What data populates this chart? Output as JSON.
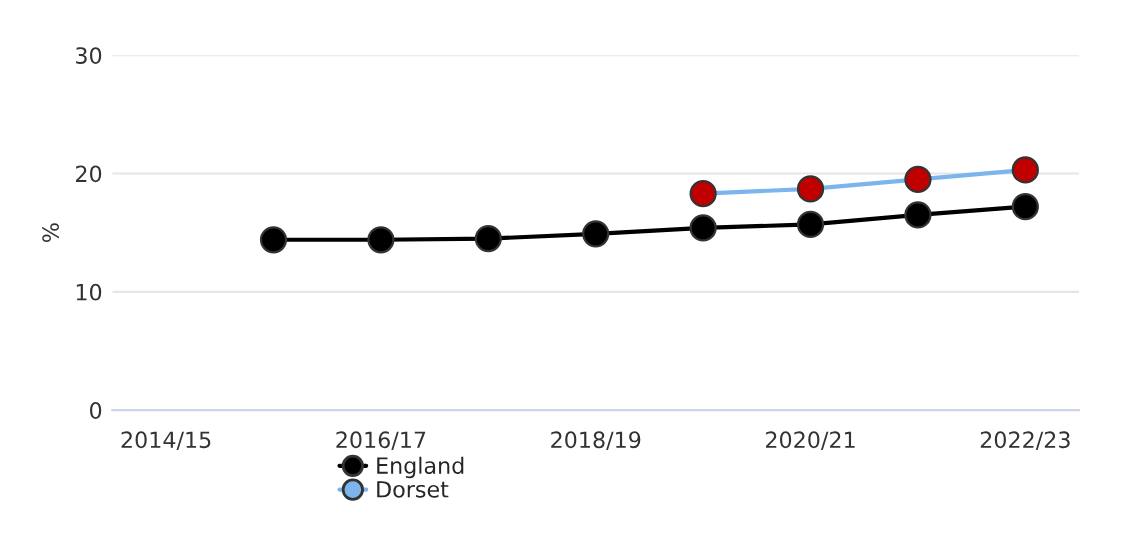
{
  "chart_data": {
    "type": "line",
    "ylabel": "%",
    "categories": [
      "2014/15",
      null,
      "2016/17",
      null,
      "2018/19",
      null,
      "2020/21",
      null,
      "2022/23"
    ],
    "series": [
      {
        "name": "England",
        "color": "#000000",
        "values": [
          null,
          14.4,
          14.4,
          14.5,
          14.9,
          15.4,
          15.7,
          16.5,
          17.2
        ]
      },
      {
        "name": "Dorset",
        "color": "#7cb5ec",
        "colors": [
          null,
          null,
          null,
          null,
          null,
          "#c00000",
          "#c00000",
          "#c00000",
          "#c00000"
        ],
        "values": [
          null,
          null,
          null,
          null,
          null,
          18.3,
          18.7,
          19.5,
          20.3
        ]
      }
    ],
    "ylim": [
      0,
      30
    ],
    "yticks": [
      0,
      10,
      20,
      30
    ],
    "grid": "y",
    "legend": "bottom",
    "marker": "circle",
    "line_style": "solid"
  }
}
